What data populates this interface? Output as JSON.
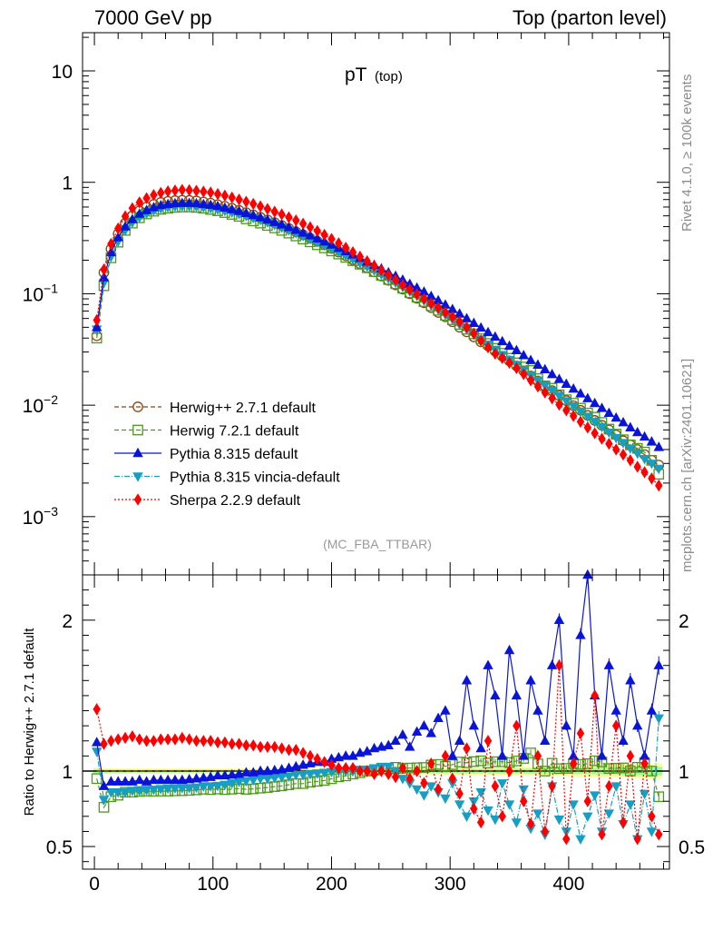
{
  "header": {
    "left": "7000 GeV pp",
    "right": "Top (parton level)"
  },
  "side_texts": {
    "rivet": "Rivet 4.1.0, ≥ 100k events",
    "mcplots": "mcplots.cern.ch [arXiv:2401.10621]"
  },
  "analysis_tag": "(MC_FBA_TTBAR)",
  "colors": {
    "herwigpp": "#8b4513",
    "herwig7": "#4c9a1c",
    "pythia": "#0a14d8",
    "vincia": "#169fc2",
    "sherpa": "#ff0000",
    "band_yellow": "#ffff99",
    "band_green": "#99ff99"
  },
  "chart_data": [
    {
      "type": "line",
      "panel": "main",
      "title_main": "pT",
      "title_sub": "(top)",
      "xlabel": "",
      "ylabel": "",
      "xlim": [
        -10,
        485
      ],
      "ylim": [
        0.0003,
        22
      ],
      "yscale": "log",
      "y_ticks": [
        {
          "value": 10,
          "label": "10",
          "exp": ""
        },
        {
          "value": 1,
          "label": "1",
          "exp": ""
        },
        {
          "value": 0.1,
          "label": "10",
          "exp": "−1"
        },
        {
          "value": 0.01,
          "label": "10",
          "exp": "−2"
        },
        {
          "value": 0.001,
          "label": "10",
          "exp": "−3"
        }
      ],
      "x": [
        2,
        8,
        14,
        20,
        26,
        32,
        38,
        44,
        50,
        56,
        62,
        68,
        74,
        80,
        86,
        92,
        98,
        104,
        110,
        116,
        122,
        128,
        134,
        140,
        146,
        152,
        158,
        164,
        170,
        176,
        182,
        188,
        194,
        200,
        206,
        212,
        218,
        224,
        230,
        236,
        242,
        248,
        254,
        260,
        266,
        272,
        278,
        284,
        290,
        296,
        302,
        308,
        314,
        320,
        326,
        332,
        338,
        344,
        350,
        356,
        362,
        368,
        374,
        380,
        386,
        392,
        398,
        404,
        410,
        416,
        422,
        428,
        434,
        440,
        446,
        452,
        458,
        464,
        470,
        476
      ],
      "series": [
        {
          "name": "Herwig++ 2.7.1 default",
          "key": "herwigpp",
          "marker": "circle-open",
          "dash": "5,3",
          "values": [
            0.042,
            0.155,
            0.252,
            0.345,
            0.43,
            0.5,
            0.555,
            0.6,
            0.635,
            0.66,
            0.675,
            0.685,
            0.69,
            0.688,
            0.68,
            0.665,
            0.65,
            0.63,
            0.61,
            0.585,
            0.56,
            0.535,
            0.51,
            0.485,
            0.46,
            0.435,
            0.41,
            0.385,
            0.36,
            0.338,
            0.315,
            0.295,
            0.275,
            0.255,
            0.236,
            0.219,
            0.202,
            0.186,
            0.171,
            0.157,
            0.144,
            0.132,
            0.12,
            0.11,
            0.1,
            0.091,
            0.083,
            0.075,
            0.068,
            0.062,
            0.056,
            0.05,
            0.0455,
            0.041,
            0.037,
            0.034,
            0.0305,
            0.0275,
            0.025,
            0.0225,
            0.0203,
            0.0183,
            0.0165,
            0.0149,
            0.0135,
            0.0122,
            0.011,
            0.0099,
            0.009,
            0.0081,
            0.0073,
            0.0066,
            0.006,
            0.0054,
            0.0048,
            0.0044,
            0.004,
            0.0036,
            0.0032,
            0.0029
          ],
          "ratio": [
            1,
            1,
            1,
            1,
            1,
            1,
            1,
            1,
            1,
            1,
            1,
            1,
            1,
            1,
            1,
            1,
            1,
            1,
            1,
            1,
            1,
            1,
            1,
            1,
            1,
            1,
            1,
            1,
            1,
            1,
            1,
            1,
            1,
            1,
            1,
            1,
            1,
            1,
            1,
            1,
            1,
            1,
            1,
            1,
            1,
            1,
            1,
            1,
            1,
            1,
            1,
            1,
            1,
            1,
            1,
            1,
            1,
            1,
            1,
            1,
            1,
            1,
            1,
            1,
            1,
            1,
            1,
            1,
            1,
            1,
            1,
            1,
            1,
            1,
            1,
            1,
            1,
            1,
            1,
            1
          ]
        },
        {
          "name": "Herwig 7.2.1 default",
          "key": "herwig7",
          "marker": "square-open",
          "dash": "5,3",
          "values": [
            0.04,
            0.118,
            0.21,
            0.29,
            0.37,
            0.43,
            0.48,
            0.52,
            0.55,
            0.572,
            0.585,
            0.595,
            0.6,
            0.6,
            0.595,
            0.585,
            0.57,
            0.555,
            0.535,
            0.515,
            0.495,
            0.47,
            0.45,
            0.43,
            0.41,
            0.39,
            0.37,
            0.35,
            0.33,
            0.31,
            0.292,
            0.275,
            0.258,
            0.242,
            0.227,
            0.212,
            0.198,
            0.184,
            0.171,
            0.158,
            0.146,
            0.134,
            0.123,
            0.112,
            0.102,
            0.093,
            0.085,
            0.078,
            0.071,
            0.064,
            0.0584,
            0.053,
            0.048,
            0.0436,
            0.0395,
            0.0358,
            0.0324,
            0.0292,
            0.0264,
            0.024,
            0.022,
            0.0205,
            0.0173,
            0.0149,
            0.0142,
            0.0124,
            0.0112,
            0.0104,
            0.0094,
            0.0085,
            0.0078,
            0.007,
            0.0061,
            0.0055,
            0.0049,
            0.0044,
            0.0041,
            0.0038,
            0.0032,
            0.0024
          ],
          "ratio": [
            0.95,
            0.76,
            0.83,
            0.84,
            0.86,
            0.86,
            0.865,
            0.867,
            0.866,
            0.867,
            0.867,
            0.869,
            0.87,
            0.872,
            0.875,
            0.88,
            0.877,
            0.881,
            0.877,
            0.88,
            0.884,
            0.879,
            0.882,
            0.887,
            0.891,
            0.897,
            0.902,
            0.909,
            0.917,
            0.917,
            0.927,
            0.932,
            0.938,
            0.949,
            0.962,
            0.968,
            0.98,
            0.989,
            1,
            1.006,
            1.014,
            1.015,
            1.025,
            1.018,
            1.02,
            1.022,
            1.024,
            1.04,
            1.044,
            1.032,
            1.043,
            1.06,
            1.055,
            1.063,
            1.068,
            1.053,
            1.062,
            1.062,
            1.056,
            1.067,
            1.084,
            1.12,
            1.048,
            1,
            1.052,
            1.016,
            1.018,
            1.051,
            1.044,
            1.049,
            1.068,
            1.06,
            1.017,
            1.019,
            1.021,
            1,
            1.025,
            1.056,
            1,
            0.83
          ]
        },
        {
          "name": "Pythia 8.315 default",
          "key": "pythia",
          "marker": "triangle-up",
          "dash": "",
          "values": [
            0.05,
            0.14,
            0.235,
            0.32,
            0.4,
            0.465,
            0.52,
            0.56,
            0.595,
            0.62,
            0.635,
            0.645,
            0.65,
            0.65,
            0.645,
            0.635,
            0.625,
            0.61,
            0.59,
            0.57,
            0.55,
            0.528,
            0.505,
            0.483,
            0.46,
            0.438,
            0.416,
            0.394,
            0.373,
            0.352,
            0.332,
            0.312,
            0.293,
            0.275,
            0.257,
            0.24,
            0.224,
            0.209,
            0.194,
            0.181,
            0.168,
            0.155,
            0.144,
            0.133,
            0.122,
            0.113,
            0.104,
            0.095,
            0.087,
            0.0795,
            0.0725,
            0.066,
            0.06,
            0.0545,
            0.0495,
            0.045,
            0.041,
            0.0373,
            0.034,
            0.031,
            0.028,
            0.0253,
            0.023,
            0.0209,
            0.0189,
            0.0171,
            0.0155,
            0.014,
            0.0127,
            0.0115,
            0.0104,
            0.0094,
            0.0085,
            0.0077,
            0.007,
            0.0063,
            0.0057,
            0.0052,
            0.0047,
            0.0042
          ],
          "ratio": [
            1.19,
            0.9,
            0.93,
            0.93,
            0.93,
            0.93,
            0.94,
            0.93,
            0.94,
            0.94,
            0.94,
            0.94,
            0.94,
            0.945,
            0.95,
            0.955,
            0.96,
            0.97,
            0.97,
            0.975,
            0.98,
            0.99,
            0.99,
            1,
            1,
            1.005,
            1.01,
            1.02,
            1.03,
            1.04,
            1.05,
            1.06,
            1.06,
            1.08,
            1.09,
            1.1,
            1.1,
            1.12,
            1.13,
            1.15,
            1.16,
            1.17,
            1.2,
            1.24,
            1.16,
            1.26,
            1.3,
            1.25,
            1.35,
            1.4,
            1.1,
            1.2,
            1.6,
            1.3,
            1.15,
            1.7,
            1.5,
            1.1,
            1.8,
            1.5,
            1.1,
            1.6,
            1.4,
            1.2,
            1.7,
            2.0,
            1.3,
            1.1,
            1.9,
            2.3,
            1.5,
            1.1,
            1.7,
            1.4,
            1.2,
            1.6,
            1.3,
            1.1,
            1.4,
            1.7
          ]
        },
        {
          "name": "Pythia 8.315 vincia-default",
          "key": "vincia",
          "marker": "triangle-down",
          "dash": "6,2,1,2",
          "values": [
            0.048,
            0.125,
            0.215,
            0.295,
            0.37,
            0.435,
            0.485,
            0.525,
            0.558,
            0.582,
            0.597,
            0.607,
            0.612,
            0.612,
            0.607,
            0.598,
            0.585,
            0.57,
            0.555,
            0.538,
            0.52,
            0.5,
            0.48,
            0.46,
            0.438,
            0.416,
            0.394,
            0.372,
            0.351,
            0.33,
            0.31,
            0.291,
            0.272,
            0.254,
            0.236,
            0.22,
            0.204,
            0.189,
            0.175,
            0.162,
            0.149,
            0.137,
            0.126,
            0.115,
            0.105,
            0.096,
            0.087,
            0.079,
            0.072,
            0.065,
            0.059,
            0.053,
            0.048,
            0.043,
            0.039,
            0.035,
            0.0315,
            0.0283,
            0.0255,
            0.023,
            0.0207,
            0.0186,
            0.0167,
            0.015,
            0.0135,
            0.0121,
            0.0109,
            0.0098,
            0.0088,
            0.0079,
            0.0071,
            0.0064,
            0.0057,
            0.0051,
            0.0046,
            0.0041,
            0.0037,
            0.0033,
            0.003,
            0.0027
          ],
          "ratio": [
            1.13,
            0.81,
            0.86,
            0.86,
            0.86,
            0.87,
            0.87,
            0.875,
            0.878,
            0.882,
            0.885,
            0.887,
            0.888,
            0.889,
            0.892,
            0.9,
            0.9,
            0.903,
            0.91,
            0.92,
            0.93,
            0.935,
            0.94,
            0.95,
            0.95,
            0.955,
            0.96,
            0.965,
            0.975,
            0.975,
            0.98,
            0.985,
            0.99,
            0.995,
            1,
            1,
            1,
            1.01,
            1.01,
            1.02,
            1.03,
            1.03,
            1.0,
            0.95,
            0.92,
            0.88,
            0.84,
            0.9,
            0.86,
            0.82,
            0.92,
            0.78,
            0.7,
            0.8,
            0.86,
            0.74,
            0.68,
            0.92,
            0.78,
            0.66,
            0.88,
            0.62,
            0.72,
            0.58,
            0.9,
            0.68,
            0.6,
            0.78,
            0.55,
            0.7,
            0.84,
            0.6,
            0.72,
            0.9,
            0.65,
            0.78,
            0.55,
            0.85,
            0.6,
            1.35
          ]
        },
        {
          "name": "Sherpa 2.2.9 default",
          "key": "sherpa",
          "marker": "diamond",
          "dash": "2,2",
          "values": [
            0.058,
            0.165,
            0.28,
            0.385,
            0.495,
            0.585,
            0.66,
            0.72,
            0.77,
            0.805,
            0.83,
            0.845,
            0.855,
            0.85,
            0.84,
            0.825,
            0.81,
            0.785,
            0.76,
            0.73,
            0.7,
            0.67,
            0.64,
            0.608,
            0.576,
            0.545,
            0.515,
            0.485,
            0.455,
            0.425,
            0.395,
            0.366,
            0.338,
            0.31,
            0.284,
            0.259,
            0.236,
            0.215,
            0.196,
            0.178,
            0.162,
            0.147,
            0.133,
            0.12,
            0.109,
            0.099,
            0.09,
            0.082,
            0.075,
            0.068,
            0.062,
            0.056,
            0.05,
            0.044,
            0.038,
            0.033,
            0.029,
            0.0265,
            0.024,
            0.0215,
            0.019,
            0.0167,
            0.0147,
            0.013,
            0.0115,
            0.0101,
            0.009,
            0.008,
            0.0071,
            0.0063,
            0.0056,
            0.005,
            0.0045,
            0.004,
            0.0036,
            0.0032,
            0.0028,
            0.0025,
            0.0022,
            0.0019
          ],
          "ratio": [
            1.41,
            1.18,
            1.2,
            1.21,
            1.22,
            1.23,
            1.21,
            1.2,
            1.2,
            1.21,
            1.21,
            1.21,
            1.22,
            1.21,
            1.2,
            1.2,
            1.2,
            1.19,
            1.19,
            1.18,
            1.18,
            1.17,
            1.17,
            1.16,
            1.16,
            1.16,
            1.15,
            1.14,
            1.14,
            1.12,
            1.1,
            1.08,
            1.06,
            1.04,
            1.02,
            1.02,
            1.02,
            1.0,
            1.0,
            0.98,
            1.0,
            0.98,
            0.96,
            1.02,
            0.95,
            1.0,
            0.92,
            1.05,
            0.88,
            1.1,
            0.95,
            0.85,
            1.15,
            0.75,
            0.66,
            1.2,
            0.9,
            0.7,
            1.0,
            1.3,
            0.8,
            0.65,
            1.1,
            0.6,
            0.9,
            1.7,
            0.55,
            1.05,
            1.25,
            0.8,
            1.5,
            0.58,
            0.9,
            1.3,
            0.66,
            1.1,
            0.55,
            1.05,
            0.7,
            0.58
          ]
        }
      ]
    },
    {
      "type": "line",
      "panel": "ratio",
      "title": "",
      "xlabel": "",
      "ylabel": "Ratio to Herwig++ 2.7.1 default",
      "xlim": [
        -10,
        485
      ],
      "ylim": [
        0.35,
        2.3
      ],
      "y_ticks": [
        {
          "value": 2,
          "label": "2"
        },
        {
          "value": 1,
          "label": "1"
        },
        {
          "value": 0.5,
          "label": "0.5"
        }
      ],
      "x_ticks": [
        {
          "value": 0,
          "label": "0"
        },
        {
          "value": 100,
          "label": "100"
        },
        {
          "value": 200,
          "label": "200"
        },
        {
          "value": 300,
          "label": "300"
        },
        {
          "value": 400,
          "label": "400"
        }
      ],
      "reference_line": 1,
      "band": "uncertainty band of Herwig++ 2.7.1 default (yellow = stat+syst, green = stat)"
    }
  ]
}
